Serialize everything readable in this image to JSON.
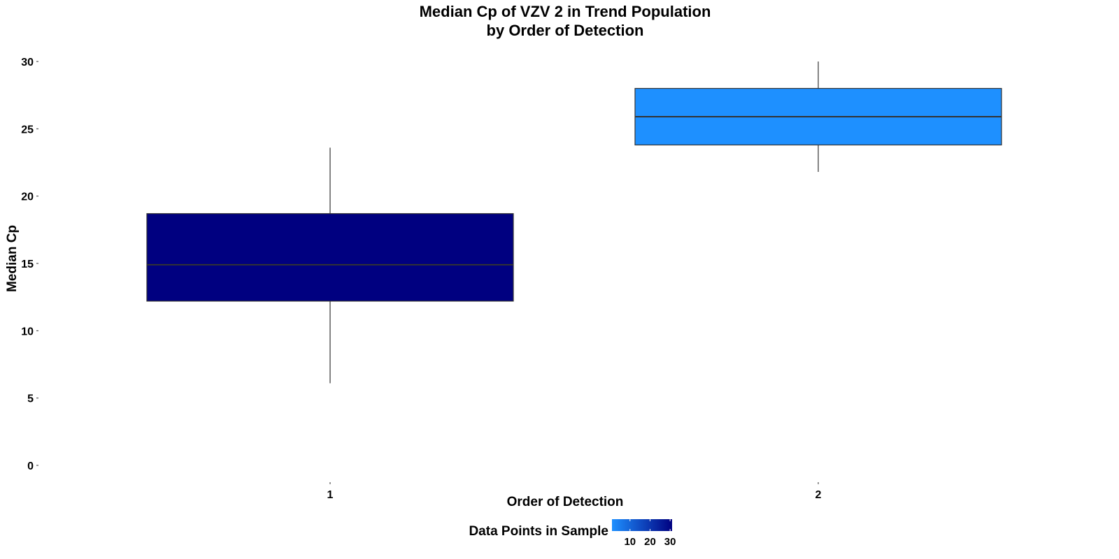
{
  "chart_data": {
    "type": "box",
    "title_line1": "Median Cp of VZV 2 in Trend Population",
    "title_line2": "by Order of Detection",
    "xlabel": "Order of Detection",
    "ylabel": "Median Cp",
    "ylim": [
      -1,
      31
    ],
    "yticks": [
      0,
      5,
      10,
      15,
      20,
      25,
      30
    ],
    "categories": [
      "1",
      "2"
    ],
    "boxes": [
      {
        "category": "1",
        "min": 6.1,
        "q1": 12.2,
        "median": 14.9,
        "q3": 18.7,
        "max": 23.6,
        "count": 30,
        "color": "#000080"
      },
      {
        "category": "2",
        "min": 21.8,
        "q1": 23.8,
        "median": 25.9,
        "q3": 28.0,
        "max": 30.0,
        "count": 1,
        "color": "#1E90FF"
      }
    ],
    "legend": {
      "title": "Data Points in Sample",
      "ticks": [
        10,
        20,
        30
      ],
      "range": [
        1,
        31
      ],
      "low_color": "#1E90FF",
      "high_color": "#000080",
      "position": "bottom"
    },
    "grid": false
  }
}
